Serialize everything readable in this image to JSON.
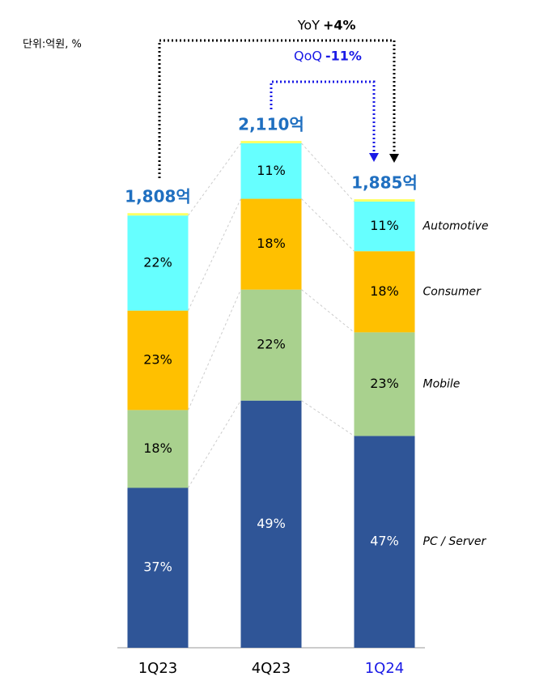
{
  "chart_data": {
    "type": "stacked_bar",
    "unit_note": "단위:억원, %",
    "annotations": {
      "yoy": {
        "label": "YoY",
        "value": "+4%"
      },
      "qoq": {
        "label": "QoQ",
        "value": "-11%"
      }
    },
    "categories": [
      "1Q23",
      "4Q23",
      "1Q24"
    ],
    "totals": {
      "values": [
        1808,
        2110,
        1885
      ],
      "value_labels": [
        "1,808억",
        "2,110억",
        "1,885억"
      ]
    },
    "series": [
      {
        "name": "PC / Server",
        "color": "#2f5597",
        "values": [
          37,
          49,
          47
        ],
        "value_labels": [
          "37%",
          "49%",
          "47%"
        ]
      },
      {
        "name": "Mobile",
        "color": "#a9d18e",
        "values": [
          18,
          22,
          23
        ],
        "value_labels": [
          "18%",
          "22%",
          "23%"
        ]
      },
      {
        "name": "Consumer",
        "color": "#ffc000",
        "values": [
          23,
          18,
          18
        ],
        "value_labels": [
          "23%",
          "18%",
          "18%"
        ]
      },
      {
        "name": "Automotive",
        "color": "#66ffff",
        "values": [
          22,
          11,
          11
        ],
        "value_labels": [
          "22%",
          "11%",
          "11%"
        ]
      }
    ]
  }
}
